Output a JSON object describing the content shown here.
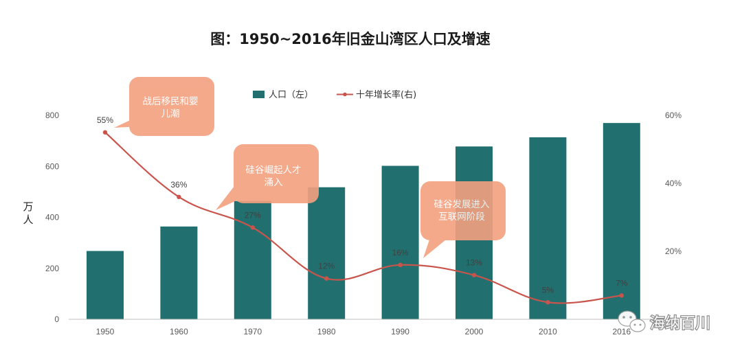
{
  "chart_data": {
    "type": "bar",
    "title": "图：1950~2016年旧金山湾区人口及增速",
    "categories": [
      "1950",
      "1960",
      "1970",
      "1980",
      "1990",
      "2000",
      "2010",
      "2016"
    ],
    "series": [
      {
        "name": "人口（左）",
        "type": "bar",
        "axis": "left",
        "color": "#21706f",
        "values": [
          268,
          364,
          464,
          518,
          602,
          678,
          714,
          770
        ]
      },
      {
        "name": "十年增长率(右)",
        "type": "line",
        "axis": "right",
        "color": "#c9544c",
        "values": [
          55,
          36,
          27,
          12,
          16,
          13,
          5,
          7
        ],
        "labels": [
          "55%",
          "36%",
          "27%",
          "12%",
          "16%",
          "13%",
          "5%",
          "7%"
        ]
      }
    ],
    "ylabel": "万人",
    "ylim": [
      0,
      800
    ],
    "yticks": [
      "0",
      "200",
      "400",
      "600",
      "800"
    ],
    "y2lim": [
      0,
      60
    ],
    "y2ticks": [
      "20%",
      "40%",
      "60%"
    ],
    "grid": false,
    "legend_position": "top",
    "annotations": [
      {
        "text": [
          "战后移民和婴",
          "儿潮"
        ],
        "category": "1950"
      },
      {
        "text": [
          "硅谷崛起人才",
          "涌入"
        ],
        "category": "1970"
      },
      {
        "text": [
          "硅谷发展进入",
          "互联网阶段"
        ],
        "category": "1990"
      }
    ],
    "callout_color": "#f4a07f"
  },
  "watermark": {
    "text": "海纳百川",
    "icon": "wechat-icon"
  }
}
